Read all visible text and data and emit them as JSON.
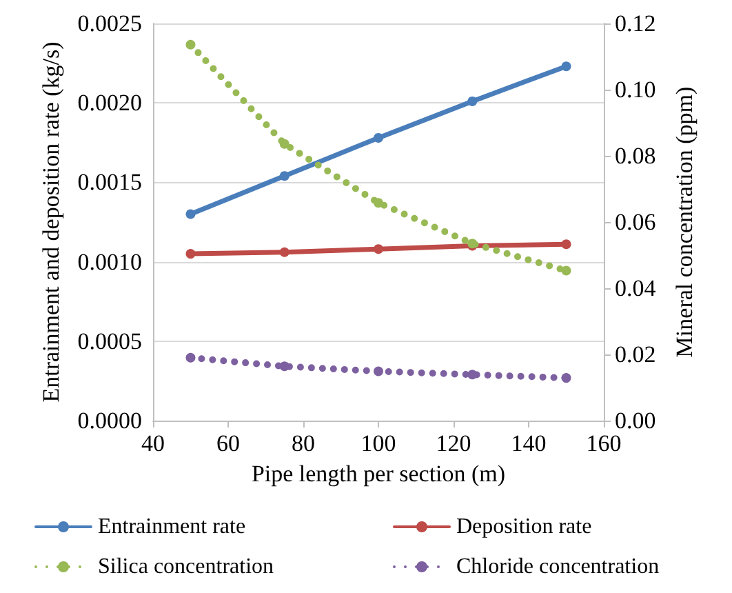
{
  "chart_data": {
    "type": "line",
    "xlabel": "Pipe length per section (m)",
    "ylabel": "Entrainment and deposition rate (kg/s)",
    "y2label": "Mineral concentration (ppm)",
    "x": [
      50,
      75,
      100,
      125,
      150
    ],
    "series": [
      {
        "name": "Entrainment rate",
        "color": "#4a7ebb",
        "line_style": "solid",
        "values": [
          0.0013,
          0.00154,
          0.00178,
          0.00201,
          0.00223
        ]
      },
      {
        "name": "Deposition rate",
        "color": "#be4b48",
        "line_style": "solid",
        "values": [
          0.00105,
          0.00106,
          0.00108,
          0.0011,
          0.00111
        ]
      },
      {
        "name": "Silica concentration",
        "color": "#98b954",
        "line_style": "dotted",
        "axis": "y2",
        "values": [
          0.1136,
          0.0836,
          0.0658,
          0.0535,
          0.0453
        ]
      },
      {
        "name": "Chloride concentration",
        "color": "#7d60a0",
        "line_style": "dotted",
        "axis": "y2",
        "values": [
          0.019,
          0.0164,
          0.0149,
          0.0139,
          0.0129
        ]
      }
    ],
    "xlim": [
      40,
      160
    ],
    "xticks": [
      40,
      60,
      80,
      100,
      120,
      140,
      160
    ],
    "ylim": [
      0,
      0.0025
    ],
    "yticks": [
      {
        "value": 0,
        "label": "0.0000"
      },
      {
        "value": 0.0005,
        "label": "0.0005"
      },
      {
        "value": 0.001,
        "label": "0.0010"
      },
      {
        "value": 0.0015,
        "label": "0.0015"
      },
      {
        "value": 0.002,
        "label": "0.0020"
      },
      {
        "value": 0.0025,
        "label": "0.0025"
      }
    ],
    "y2lim": [
      0,
      0.12
    ],
    "y2ticks": [
      {
        "value": 0,
        "label": "0.00"
      },
      {
        "value": 0.02,
        "label": "0.02"
      },
      {
        "value": 0.04,
        "label": "0.04"
      },
      {
        "value": 0.06,
        "label": "0.06"
      },
      {
        "value": 0.08,
        "label": "0.08"
      },
      {
        "value": 0.1,
        "label": "0.10"
      },
      {
        "value": 0.12,
        "label": "0.12"
      }
    ],
    "grid": "y",
    "legend": "bottom",
    "marker": "circle"
  }
}
